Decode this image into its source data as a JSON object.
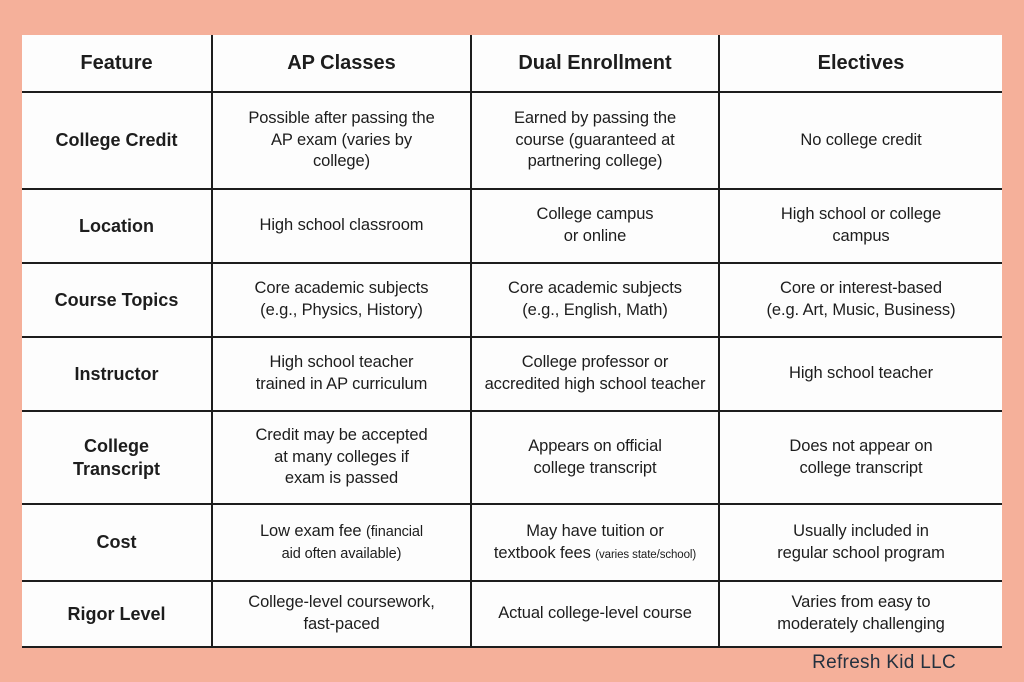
{
  "colors": {
    "background": "#f5b09a",
    "card": "#fdfdfd",
    "grid_line": "#1d1d1d",
    "text": "#1d1d1d",
    "watermark": "#23313f"
  },
  "watermark": "Refresh Kid LLC",
  "table": {
    "columns": [
      "Feature",
      "AP Classes",
      "Dual Enrollment",
      "Electives"
    ],
    "rows": [
      {
        "feature": "College Credit",
        "cells": [
          {
            "runs": [
              {
                "t": "Possible after passing the\nAP exam (varies by\ncollege)",
                "style": "normal"
              }
            ]
          },
          {
            "runs": [
              {
                "t": "Earned by passing the\ncourse (guaranteed at\npartnering college)",
                "style": "normal"
              }
            ]
          },
          {
            "runs": [
              {
                "t": "No college credit",
                "style": "normal"
              }
            ]
          }
        ]
      },
      {
        "feature": "Location",
        "cells": [
          {
            "runs": [
              {
                "t": "High school classroom",
                "style": "normal"
              }
            ]
          },
          {
            "runs": [
              {
                "t": "College campus\nor online",
                "style": "normal"
              }
            ]
          },
          {
            "runs": [
              {
                "t": "High school or college\ncampus",
                "style": "normal"
              }
            ]
          }
        ]
      },
      {
        "feature": "Course Topics",
        "cells": [
          {
            "runs": [
              {
                "t": "Core academic subjects\n(e.g., Physics, History)",
                "style": "normal"
              }
            ]
          },
          {
            "runs": [
              {
                "t": "Core academic subjects\n(e.g., English, Math)",
                "style": "normal"
              }
            ]
          },
          {
            "runs": [
              {
                "t": "Core or interest-based\n(e.g. Art, Music, Business)",
                "style": "normal"
              }
            ]
          }
        ]
      },
      {
        "feature": "Instructor",
        "cells": [
          {
            "runs": [
              {
                "t": "High school teacher\ntrained in AP curriculum",
                "style": "normal"
              }
            ]
          },
          {
            "runs": [
              {
                "t": "College professor or\naccredited high school teacher",
                "style": "normal"
              }
            ]
          },
          {
            "runs": [
              {
                "t": "High school teacher",
                "style": "normal"
              }
            ]
          }
        ]
      },
      {
        "feature": "College\nTranscript",
        "cells": [
          {
            "runs": [
              {
                "t": "Credit may be accepted\nat many colleges if\nexam is passed",
                "style": "normal"
              }
            ]
          },
          {
            "runs": [
              {
                "t": "Appears on official\ncollege transcript",
                "style": "normal"
              }
            ]
          },
          {
            "runs": [
              {
                "t": "Does not appear on\ncollege transcript",
                "style": "normal"
              }
            ]
          }
        ]
      },
      {
        "feature": "Cost",
        "cells": [
          {
            "runs": [
              {
                "t": "Low exam fee ",
                "style": "normal"
              },
              {
                "t": "(financial\naid often available)",
                "style": "small"
              }
            ]
          },
          {
            "runs": [
              {
                "t": "May have tuition or\ntextbook fees ",
                "style": "normal"
              },
              {
                "t": "(varies state/school)",
                "style": "tiny"
              }
            ]
          },
          {
            "runs": [
              {
                "t": "Usually included in\nregular school program",
                "style": "normal"
              }
            ]
          }
        ]
      },
      {
        "feature": "Rigor Level",
        "cells": [
          {
            "runs": [
              {
                "t": "College-level coursework,\nfast-paced",
                "style": "normal"
              }
            ]
          },
          {
            "runs": [
              {
                "t": "Actual college-level course",
                "style": "normal"
              }
            ]
          },
          {
            "runs": [
              {
                "t": "Varies from easy to\nmoderately challenging",
                "style": "normal"
              }
            ]
          }
        ]
      }
    ]
  }
}
